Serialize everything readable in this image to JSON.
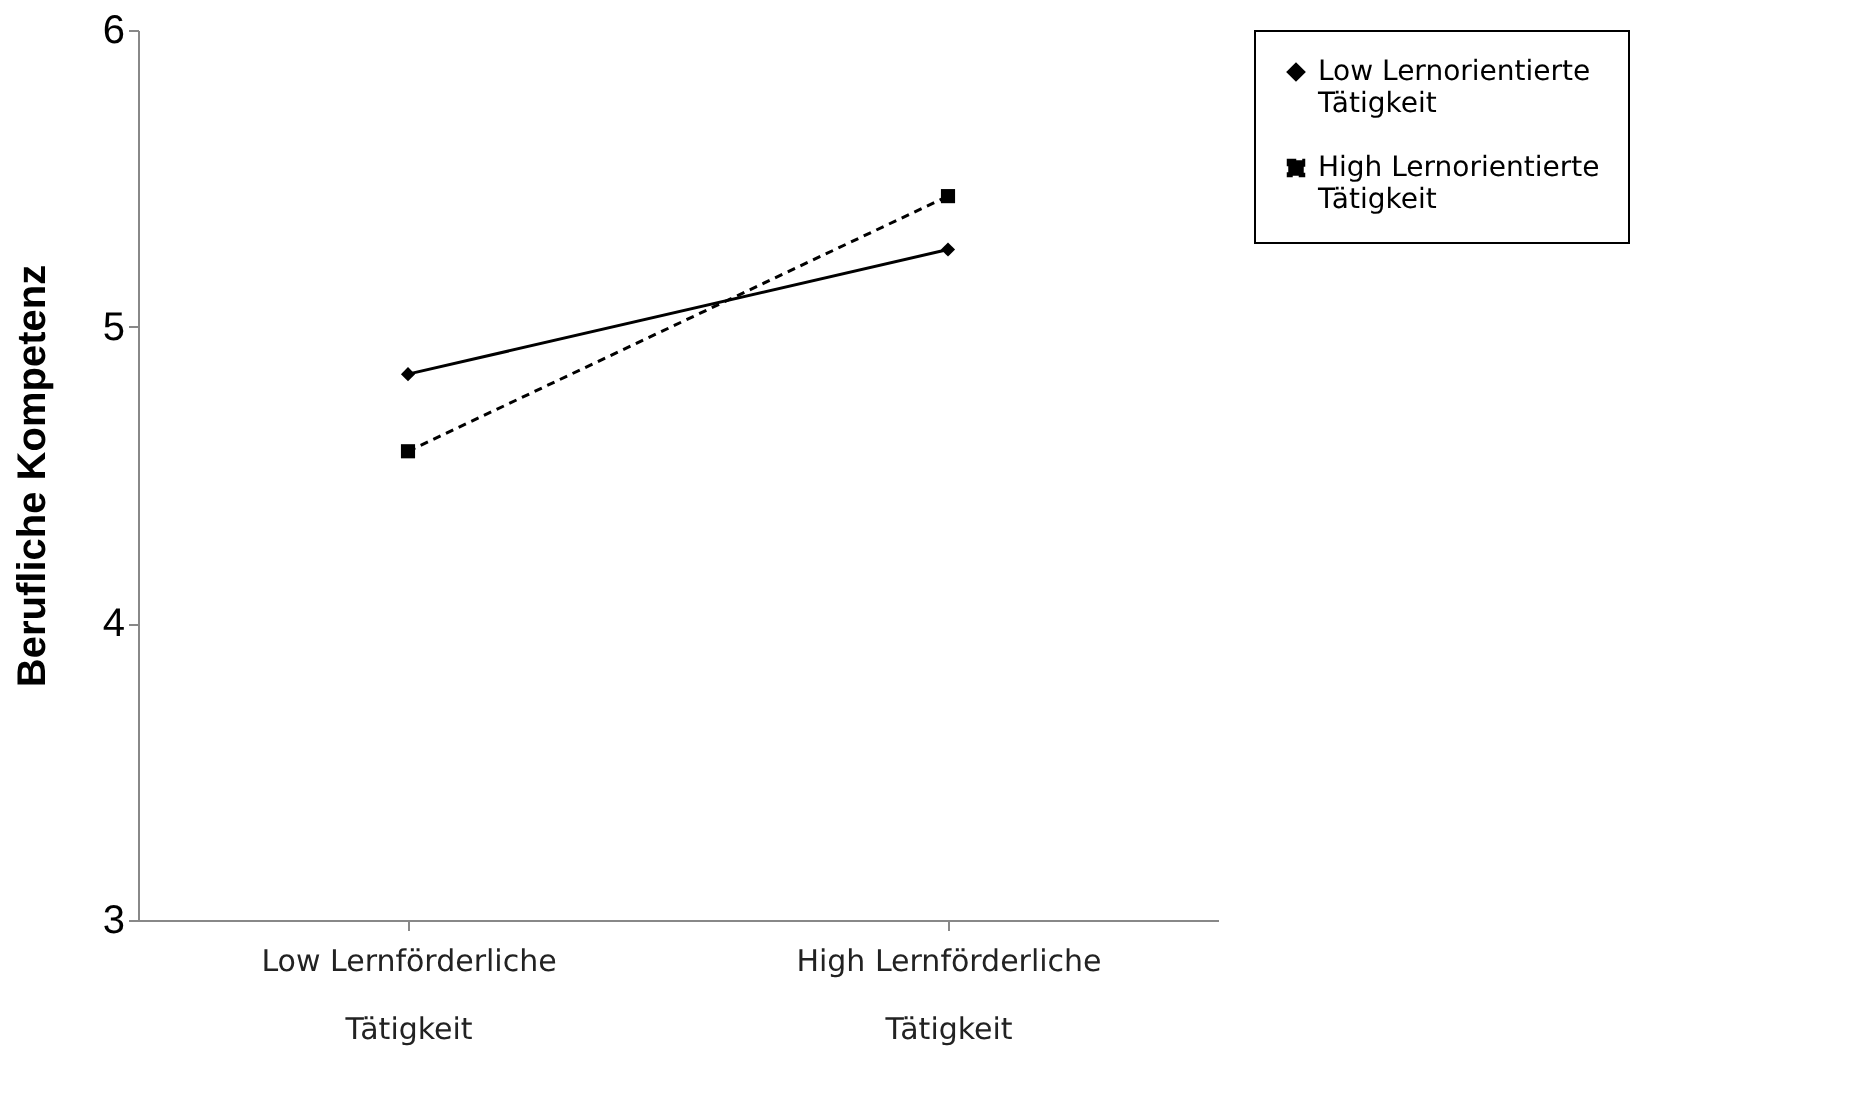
{
  "chart_data": {
    "type": "line",
    "ylabel": "Berufliche Kompetenz",
    "categories": [
      "Low Lernförderliche Tätigkeit",
      "High Lernförderliche Tätigkeit"
    ],
    "series": [
      {
        "name": "Low Lernorientierte Tätigkeit",
        "color": "#000000",
        "values": [
          4.84,
          5.26
        ],
        "marker": "diamond",
        "line_style": "solid"
      },
      {
        "name": "High Lernorientierte Tätigkeit",
        "color": "#000000",
        "values": [
          4.58,
          5.44
        ],
        "marker": "square",
        "line_style": "dashed"
      }
    ],
    "ylim": [
      3,
      6
    ],
    "yticks": [
      3,
      4,
      5,
      6
    ],
    "grid": false,
    "legend": "right"
  }
}
